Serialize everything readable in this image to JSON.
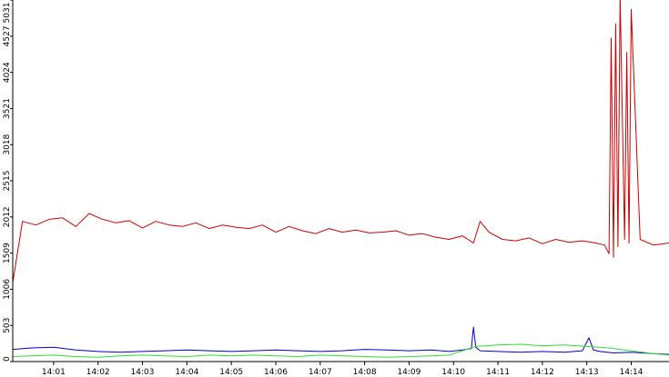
{
  "chart_data": {
    "type": "line",
    "xlabel": "",
    "ylabel": "",
    "ylim": [
      0,
      5031
    ],
    "y_ticks": [
      0,
      503,
      1006,
      1509,
      2012,
      2515,
      3018,
      3521,
      4024,
      4527,
      5031
    ],
    "x_ticks": [
      "14:01",
      "14:02",
      "14:03",
      "14:04",
      "14:05",
      "14:06",
      "14:07",
      "14:08",
      "14:09",
      "14:10",
      "14:11",
      "14:12",
      "14:13",
      "14:14"
    ],
    "x_tick_values": [
      1,
      2,
      3,
      4,
      5,
      6,
      7,
      8,
      9,
      10,
      11,
      12,
      13,
      14
    ],
    "xlim": [
      0.08,
      14.85
    ],
    "grid": false,
    "series": [
      {
        "color": "#cc0000",
        "x": [
          0.08,
          0.3,
          0.6,
          0.9,
          1.2,
          1.5,
          1.8,
          2.1,
          2.4,
          2.7,
          3.0,
          3.3,
          3.6,
          3.9,
          4.2,
          4.5,
          4.8,
          5.1,
          5.4,
          5.7,
          6.0,
          6.3,
          6.6,
          6.9,
          7.2,
          7.5,
          7.8,
          8.1,
          8.4,
          8.7,
          9.0,
          9.3,
          9.6,
          9.9,
          10.2,
          10.45,
          10.6,
          10.8,
          11.1,
          11.4,
          11.7,
          12.0,
          12.3,
          12.6,
          12.9,
          13.2,
          13.4,
          13.5,
          13.55,
          13.6,
          13.65,
          13.7,
          13.75,
          13.85,
          13.9,
          13.95,
          14.0,
          14.2,
          14.5,
          14.85
        ],
        "values": [
          1100,
          1950,
          1900,
          1980,
          2000,
          1880,
          2060,
          1980,
          1930,
          1960,
          1860,
          1950,
          1900,
          1880,
          1930,
          1850,
          1900,
          1870,
          1850,
          1900,
          1800,
          1880,
          1820,
          1780,
          1850,
          1800,
          1830,
          1790,
          1800,
          1820,
          1760,
          1780,
          1730,
          1700,
          1750,
          1650,
          1950,
          1800,
          1700,
          1680,
          1720,
          1640,
          1700,
          1660,
          1680,
          1650,
          1620,
          1500,
          4500,
          1450,
          4700,
          1600,
          5100,
          1700,
          4300,
          1650,
          4900,
          1700,
          1620,
          1650
        ]
      },
      {
        "color": "#0000cc",
        "x": [
          0.08,
          0.5,
          1.0,
          1.5,
          2.0,
          2.5,
          3.0,
          3.5,
          4.0,
          4.5,
          5.0,
          5.5,
          6.0,
          6.5,
          7.0,
          7.5,
          8.0,
          8.5,
          9.0,
          9.5,
          9.9,
          10.2,
          10.4,
          10.45,
          10.5,
          10.6,
          11.0,
          11.5,
          12.0,
          12.5,
          12.9,
          13.05,
          13.15,
          13.3,
          13.6,
          14.0,
          14.5,
          14.85
        ],
        "values": [
          170,
          190,
          200,
          160,
          140,
          130,
          140,
          150,
          160,
          150,
          140,
          150,
          160,
          150,
          140,
          150,
          170,
          160,
          150,
          160,
          140,
          160,
          180,
          480,
          200,
          150,
          140,
          130,
          140,
          130,
          150,
          330,
          160,
          140,
          120,
          130,
          110,
          100
        ]
      },
      {
        "color": "#33dd33",
        "x": [
          0.08,
          0.5,
          1.0,
          1.5,
          2.0,
          2.5,
          3.0,
          3.5,
          4.0,
          4.5,
          5.0,
          5.5,
          6.0,
          6.5,
          7.0,
          7.5,
          8.0,
          8.5,
          9.0,
          9.5,
          9.9,
          10.2,
          10.5,
          11.0,
          11.5,
          12.0,
          12.5,
          13.0,
          13.5,
          14.0,
          14.5,
          14.85
        ],
        "values": [
          70,
          80,
          90,
          70,
          60,
          80,
          90,
          80,
          70,
          90,
          80,
          90,
          80,
          70,
          90,
          80,
          70,
          60,
          70,
          80,
          90,
          150,
          210,
          230,
          240,
          220,
          230,
          210,
          190,
          150,
          110,
          90
        ]
      }
    ]
  }
}
